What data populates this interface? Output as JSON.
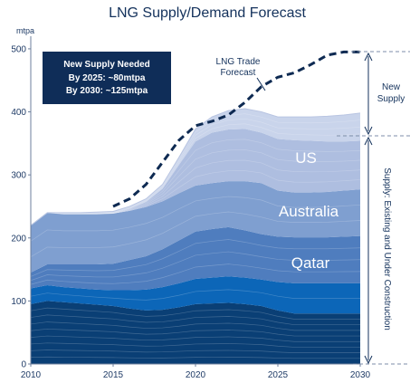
{
  "chart_data": {
    "type": "area",
    "title": "LNG Supply/Demand Forecast",
    "ylabel": "mtpa",
    "xlim": [
      2010,
      2030
    ],
    "ylim": [
      0,
      520
    ],
    "x_ticks": [
      "2010",
      "2015",
      "2020",
      "2025",
      "2030"
    ],
    "y_ticks": [
      "0",
      "100",
      "200",
      "300",
      "400",
      "500"
    ],
    "x": [
      2010,
      2011,
      2012,
      2013,
      2014,
      2015,
      2016,
      2017,
      2018,
      2019,
      2020,
      2021,
      2022,
      2023,
      2024,
      2025,
      2026,
      2027,
      2028,
      2029,
      2030
    ],
    "series": [
      {
        "values": [
          95,
          100,
          98,
          96,
          94,
          92,
          88,
          85,
          86,
          90,
          95,
          96,
          97,
          95,
          92,
          85,
          80,
          80,
          80,
          80,
          80
        ]
      },
      {
        "values": [
          25,
          25,
          24,
          24,
          24,
          25,
          29,
          33,
          36,
          38,
          40,
          41,
          42,
          42,
          42,
          45,
          48,
          48,
          48,
          48,
          48
        ]
      },
      {
        "values": [
          25,
          33,
          36,
          38,
          40,
          42,
          48,
          53,
          60,
          68,
          75,
          77,
          78,
          75,
          72,
          72,
          73,
          73,
          73,
          74,
          75
        ]
      },
      {
        "values": [
          75,
          82,
          80,
          80,
          80,
          80,
          78,
          78,
          76,
          75,
          73,
          73,
          73,
          78,
          81,
          73,
          71,
          71,
          72,
          73,
          74
        ]
      },
      {
        "values": [
          0,
          0,
          0,
          0,
          0,
          0,
          3,
          8,
          20,
          45,
          70,
          80,
          82,
          83,
          80,
          82,
          83,
          82,
          80,
          78,
          77
        ]
      },
      {
        "values": [
          0,
          0,
          2,
          2,
          3,
          3,
          4,
          5,
          7,
          12,
          20,
          25,
          30,
          32,
          33,
          35,
          37,
          38,
          40,
          42,
          44
        ]
      }
    ],
    "trade_forecast": {
      "name": "LNG Trade Forecast",
      "x": [
        2015,
        2016,
        2017,
        2018,
        2019,
        2020,
        2021,
        2022,
        2023,
        2024,
        2025,
        2026,
        2027,
        2028,
        2029,
        2030
      ],
      "values": [
        250,
        262,
        285,
        320,
        355,
        378,
        385,
        395,
        415,
        440,
        455,
        462,
        475,
        490,
        495,
        495
      ]
    },
    "region_labels": [
      "US",
      "Australia",
      "Qatar"
    ],
    "callout": {
      "line1": "New Supply Needed",
      "line2": "By 2025: ~80mtpa",
      "line3": "By 2030: ~125mtpa"
    },
    "annotation_line1": "LNG Trade",
    "annotation_line2": "Forecast",
    "new_supply_line1": "New",
    "new_supply_line2": "Supply",
    "existing_supply_label": "Supply: Existing and Under Construction",
    "colors": {
      "title": "#14325c",
      "callout_bg": "#0f2d58",
      "forecast_line": "#0e2a52",
      "layers": [
        "#0a3f75",
        "#0c66b8",
        "#4f7dbe",
        "#7f9fd0",
        "#aebee0",
        "#c9d4eb"
      ]
    }
  }
}
